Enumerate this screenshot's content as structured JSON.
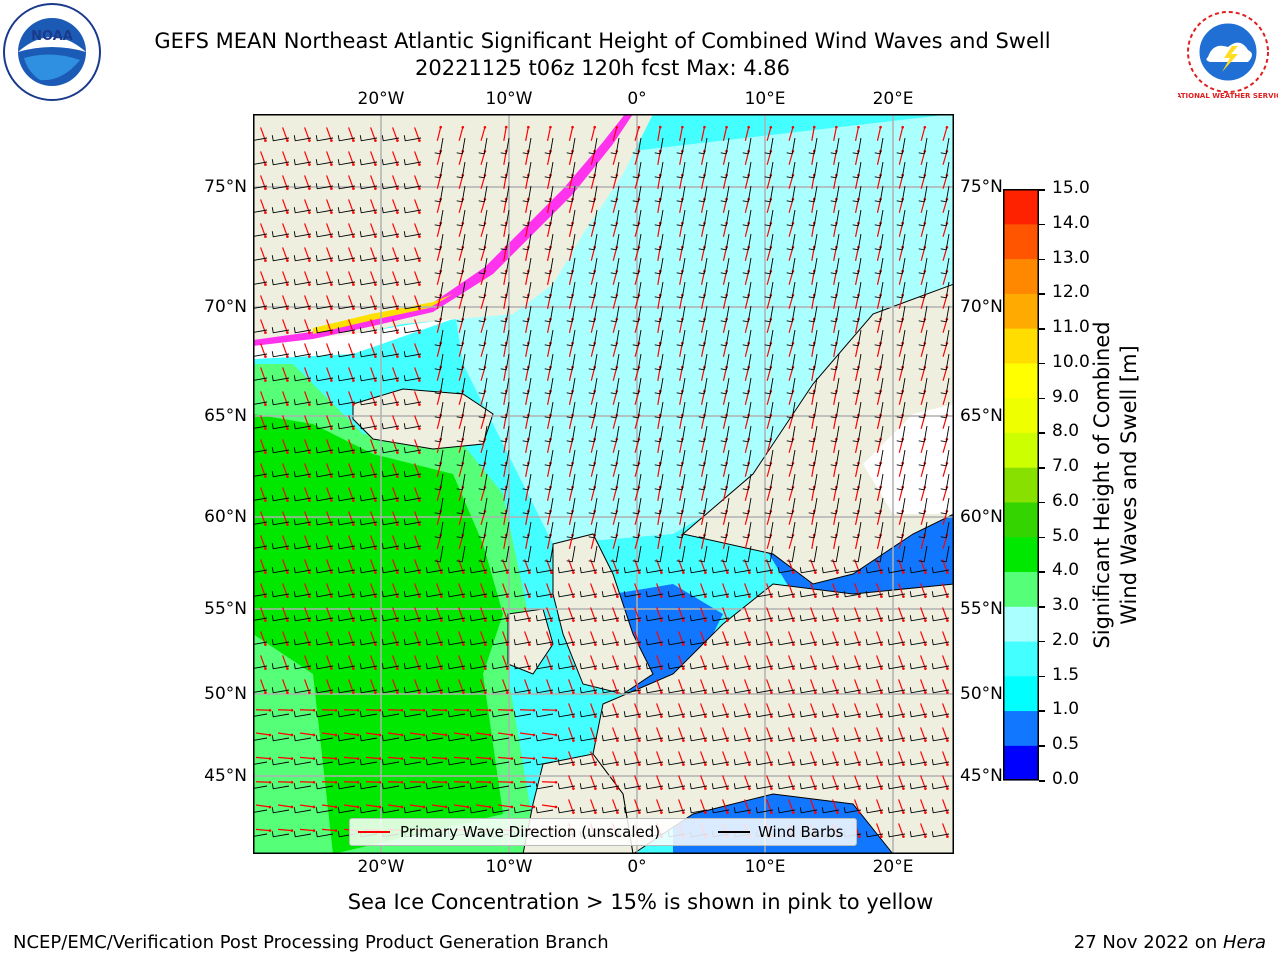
{
  "title": {
    "line1": "GEFS MEAN Northeast Atlantic Significant Height of Combined Wind Waves and Swell",
    "line2": "20221125 t06z 120h fcst   Max: 4.86"
  },
  "logos": {
    "left": "NOAA",
    "right": "NATIONAL WEATHER SERVICE"
  },
  "map": {
    "lon_labels": [
      "20°W",
      "10°W",
      "0°",
      "10°E",
      "20°E"
    ],
    "lat_labels": [
      "75°N",
      "70°N",
      "65°N",
      "60°N",
      "55°N",
      "50°N",
      "45°N"
    ],
    "colors": {
      "ocean_low": "#44ffff",
      "ocean_mid": "#aaffff",
      "ocean_high": "#00e800",
      "ocean_green": "#55ff77",
      "shallow": "#1177ff",
      "land": "#efefe0",
      "sea_ice_pink": "#ff33ee",
      "sea_ice_yellow": "#ffe000"
    }
  },
  "legend": {
    "wave_direction": "Primary Wave Direction (unscaled)",
    "wind_barbs": "Wind Barbs",
    "wave_color": "#ff0000",
    "barb_color": "#000000"
  },
  "colorbar": {
    "ticks": [
      "15.0",
      "14.0",
      "13.0",
      "12.0",
      "11.0",
      "10.0",
      "9.0",
      "8.0",
      "7.0",
      "6.0",
      "5.0",
      "4.0",
      "3.0",
      "2.0",
      "1.5",
      "1.0",
      "0.5",
      "0.0"
    ],
    "colors_bottom_to_top": [
      "#0000ff",
      "#1177ff",
      "#00ffff",
      "#44ffff",
      "#aaffff",
      "#55ff77",
      "#00e800",
      "#33d400",
      "#88e000",
      "#ccff00",
      "#eeff00",
      "#ffff00",
      "#ffdd00",
      "#ffaa00",
      "#ff8800",
      "#ff5500",
      "#ff2200"
    ],
    "label_line1": "Significant Height of Combined",
    "label_line2": "Wind Waves and Swell [m]"
  },
  "caption": "Sea Ice Concentration > 15% is shown in pink to yellow",
  "footer": {
    "left": "NCEP/EMC/Verification Post Processing Product Generation Branch",
    "right_prefix": "27 Nov 2022 on ",
    "right_host": "Hera"
  }
}
